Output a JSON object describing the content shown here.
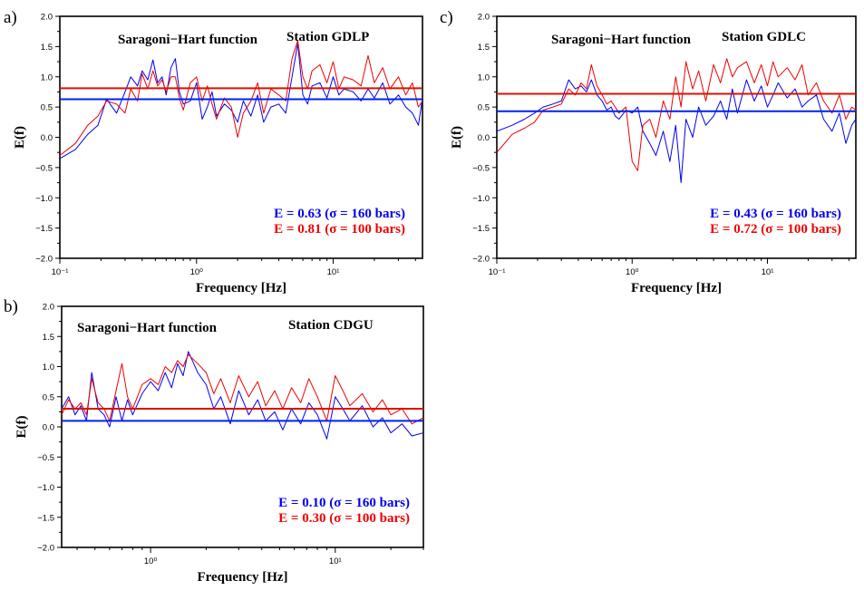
{
  "chart_data": [
    {
      "panel": "a)",
      "type": "line",
      "x_scale": "log",
      "xlim": [
        0.1,
        45
      ],
      "ylim": [
        -2.0,
        2.0
      ],
      "xlabel": "Frequency [Hz]",
      "ylabel": "E(f)",
      "title_left": "Saragoni−Hart function",
      "title_right": "Station GDLP",
      "x_tick_labels": [
        "10⁻¹",
        "10⁰",
        "10¹"
      ],
      "y_tick_labels": [
        "2.0",
        "1.5",
        "1.0",
        "0.5",
        "0.0",
        "−0.5",
        "−1.0",
        "−1.5",
        "−2.0"
      ],
      "legend": [
        "E = 0.63 (σ = 160 bars)",
        "E = 0.81 (σ = 100 bars)"
      ],
      "series": [
        {
          "label": "σ = 160 bars",
          "color": "#0000ee",
          "mean": 0.63,
          "x": [
            0.1,
            0.13,
            0.16,
            0.19,
            0.22,
            0.26,
            0.3,
            0.33,
            0.37,
            0.4,
            0.44,
            0.48,
            0.52,
            0.56,
            0.6,
            0.65,
            0.7,
            0.75,
            0.8,
            0.9,
            1.0,
            1.1,
            1.2,
            1.3,
            1.4,
            1.6,
            1.8,
            2.0,
            2.2,
            2.5,
            2.8,
            3.1,
            3.5,
            4.0,
            4.5,
            5.0,
            5.5,
            6.0,
            6.5,
            7.0,
            8.0,
            9.0,
            10,
            11,
            12,
            14,
            16,
            18,
            20,
            23,
            26,
            30,
            34,
            38,
            42,
            45
          ],
          "y": [
            -0.35,
            -0.2,
            0.05,
            0.2,
            0.63,
            0.4,
            0.75,
            1.0,
            0.85,
            1.1,
            0.95,
            1.28,
            0.9,
            1.0,
            0.7,
            1.15,
            1.3,
            0.75,
            0.55,
            0.6,
            0.9,
            0.3,
            0.5,
            0.75,
            0.35,
            0.55,
            0.45,
            0.25,
            0.6,
            0.35,
            0.7,
            0.25,
            0.5,
            0.55,
            0.4,
            1.0,
            1.55,
            0.7,
            0.55,
            0.85,
            0.9,
            0.65,
            1.0,
            0.7,
            0.8,
            0.75,
            0.6,
            0.8,
            0.65,
            0.9,
            0.55,
            0.7,
            0.5,
            0.4,
            0.2,
            0.65
          ]
        },
        {
          "label": "σ = 100 bars",
          "color": "#ee0000",
          "mean": 0.81,
          "x": [
            0.1,
            0.13,
            0.16,
            0.19,
            0.22,
            0.26,
            0.3,
            0.33,
            0.37,
            0.4,
            0.44,
            0.48,
            0.52,
            0.56,
            0.6,
            0.65,
            0.7,
            0.75,
            0.8,
            0.9,
            1.0,
            1.1,
            1.2,
            1.3,
            1.4,
            1.6,
            1.8,
            2.0,
            2.2,
            2.5,
            2.8,
            3.1,
            3.5,
            4.0,
            4.5,
            5.0,
            5.5,
            6.0,
            6.5,
            7.0,
            8.0,
            9.0,
            10,
            11,
            12,
            14,
            16,
            18,
            20,
            23,
            26,
            30,
            34,
            38,
            42,
            45
          ],
          "y": [
            -0.3,
            -0.1,
            0.2,
            0.35,
            0.6,
            0.55,
            0.4,
            0.8,
            0.6,
            1.05,
            0.8,
            1.1,
            0.85,
            0.95,
            0.75,
            1.0,
            1.0,
            0.65,
            0.45,
            0.9,
            1.0,
            0.6,
            0.85,
            0.55,
            0.3,
            0.65,
            0.5,
            0.0,
            0.4,
            0.6,
            0.9,
            0.4,
            0.8,
            0.7,
            0.6,
            1.3,
            1.6,
            1.0,
            0.8,
            1.1,
            1.2,
            0.9,
            1.25,
            0.8,
            1.0,
            0.95,
            0.85,
            1.35,
            0.9,
            1.15,
            0.8,
            1.0,
            0.7,
            0.9,
            0.5,
            0.6
          ]
        }
      ]
    },
    {
      "panel": "b)",
      "type": "line",
      "x_scale": "log",
      "xlim": [
        0.33,
        30
      ],
      "ylim": [
        -2.0,
        2.0
      ],
      "xlabel": "Frequency [Hz]",
      "ylabel": "E(f)",
      "title_left": "Saragoni−Hart function",
      "title_right": "Station CDGU",
      "x_tick_labels": [
        "10⁰",
        "10¹"
      ],
      "y_tick_labels": [
        "2.0",
        "1.5",
        "1.0",
        "0.5",
        "0.0",
        "−0.5",
        "−1.0",
        "−1.5",
        "−2.0"
      ],
      "legend": [
        "E = 0.10 (σ = 160 bars)",
        "E = 0.30 (σ = 100 bars)"
      ],
      "series": [
        {
          "label": "σ = 160 bars",
          "color": "#0000ee",
          "mean": 0.1,
          "x": [
            0.33,
            0.36,
            0.39,
            0.42,
            0.45,
            0.48,
            0.52,
            0.56,
            0.6,
            0.65,
            0.7,
            0.75,
            0.8,
            0.9,
            1.0,
            1.1,
            1.2,
            1.3,
            1.4,
            1.5,
            1.6,
            1.8,
            2.0,
            2.2,
            2.4,
            2.7,
            3.0,
            3.4,
            3.8,
            4.2,
            4.7,
            5.2,
            5.8,
            6.5,
            7.2,
            8.0,
            9.0,
            10,
            11,
            12,
            14,
            16,
            18,
            20,
            23,
            26,
            30
          ],
          "y": [
            0.3,
            0.5,
            0.2,
            0.35,
            0.1,
            0.9,
            0.3,
            0.2,
            0.0,
            0.5,
            0.1,
            0.45,
            0.2,
            0.55,
            0.75,
            0.6,
            0.9,
            0.65,
            1.05,
            0.85,
            1.25,
            0.9,
            0.7,
            0.3,
            0.5,
            0.05,
            0.6,
            0.2,
            0.45,
            0.1,
            0.25,
            -0.05,
            0.3,
            0.05,
            0.4,
            0.2,
            -0.2,
            0.5,
            0.3,
            0.1,
            0.35,
            0.0,
            0.15,
            -0.1,
            0.05,
            -0.15,
            -0.1
          ]
        },
        {
          "label": "σ = 100 bars",
          "color": "#ee0000",
          "mean": 0.3,
          "x": [
            0.33,
            0.36,
            0.39,
            0.42,
            0.45,
            0.48,
            0.52,
            0.56,
            0.6,
            0.65,
            0.7,
            0.75,
            0.8,
            0.9,
            1.0,
            1.1,
            1.2,
            1.3,
            1.4,
            1.5,
            1.6,
            1.8,
            2.0,
            2.2,
            2.4,
            2.7,
            3.0,
            3.4,
            3.8,
            4.2,
            4.7,
            5.2,
            5.8,
            6.5,
            7.2,
            8.0,
            9.0,
            10,
            11,
            12,
            14,
            16,
            18,
            20,
            23,
            26,
            30
          ],
          "y": [
            0.2,
            0.45,
            0.3,
            0.4,
            0.2,
            0.8,
            0.4,
            0.3,
            0.1,
            0.6,
            1.05,
            0.5,
            0.3,
            0.7,
            0.8,
            0.7,
            1.0,
            0.9,
            1.1,
            1.0,
            1.2,
            1.05,
            0.9,
            0.55,
            0.8,
            0.4,
            0.85,
            0.5,
            0.75,
            0.35,
            0.6,
            0.3,
            0.65,
            0.4,
            0.8,
            0.5,
            0.1,
            0.85,
            0.6,
            0.35,
            0.55,
            0.25,
            0.45,
            0.2,
            0.3,
            0.05,
            0.15
          ]
        }
      ]
    },
    {
      "panel": "c)",
      "type": "line",
      "x_scale": "log",
      "xlim": [
        0.1,
        45
      ],
      "ylim": [
        -2.0,
        2.0
      ],
      "xlabel": "Frequency [Hz]",
      "ylabel": "E(f)",
      "title_left": "Saragoni−Hart function",
      "title_right": "Station GDLC",
      "x_tick_labels": [
        "10⁻¹",
        "10⁰",
        "10¹"
      ],
      "y_tick_labels": [
        "2.0",
        "1.5",
        "1.0",
        "0.5",
        "0.0",
        "−0.5",
        "−1.0",
        "−1.5",
        "−2.0"
      ],
      "legend": [
        "E = 0.43 (σ = 160 bars)",
        "E = 0.72 (σ = 100 bars)"
      ],
      "series": [
        {
          "label": "σ = 160 bars",
          "color": "#0000ee",
          "mean": 0.43,
          "x": [
            0.1,
            0.13,
            0.16,
            0.19,
            0.22,
            0.26,
            0.3,
            0.34,
            0.38,
            0.42,
            0.46,
            0.5,
            0.55,
            0.6,
            0.65,
            0.7,
            0.75,
            0.8,
            0.9,
            1.0,
            1.1,
            1.2,
            1.35,
            1.5,
            1.7,
            1.9,
            2.1,
            2.3,
            2.5,
            2.8,
            3.1,
            3.5,
            4.0,
            4.5,
            5.0,
            5.5,
            6.0,
            7.0,
            8.0,
            9.0,
            10,
            11,
            12,
            14,
            16,
            18,
            20,
            23,
            26,
            30,
            34,
            38,
            42,
            45
          ],
          "y": [
            0.1,
            0.2,
            0.3,
            0.4,
            0.5,
            0.55,
            0.6,
            0.95,
            0.8,
            0.85,
            0.75,
            0.95,
            0.7,
            0.6,
            0.45,
            0.5,
            0.35,
            0.3,
            0.45,
            0.4,
            0.5,
            0.1,
            -0.1,
            -0.3,
            0.1,
            -0.4,
            0.2,
            -0.75,
            0.3,
            0.0,
            0.5,
            0.2,
            0.35,
            0.6,
            0.3,
            0.8,
            0.4,
            0.95,
            0.6,
            0.85,
            0.5,
            0.7,
            0.9,
            0.65,
            0.8,
            0.5,
            0.6,
            0.7,
            0.3,
            0.1,
            0.4,
            -0.1,
            0.2,
            0.3
          ]
        },
        {
          "label": "σ = 100 bars",
          "color": "#ee0000",
          "mean": 0.72,
          "x": [
            0.1,
            0.13,
            0.16,
            0.19,
            0.22,
            0.26,
            0.3,
            0.34,
            0.38,
            0.42,
            0.46,
            0.5,
            0.55,
            0.6,
            0.65,
            0.7,
            0.75,
            0.8,
            0.9,
            1.0,
            1.1,
            1.2,
            1.35,
            1.5,
            1.7,
            1.9,
            2.1,
            2.3,
            2.5,
            2.8,
            3.1,
            3.5,
            4.0,
            4.5,
            5.0,
            5.5,
            6.0,
            7.0,
            8.0,
            9.0,
            10,
            11,
            12,
            14,
            16,
            18,
            20,
            23,
            26,
            30,
            34,
            38,
            42,
            45
          ],
          "y": [
            -0.25,
            0.05,
            0.15,
            0.25,
            0.45,
            0.5,
            0.55,
            0.8,
            0.7,
            0.9,
            0.8,
            1.2,
            0.85,
            0.7,
            0.55,
            0.6,
            0.5,
            0.4,
            0.5,
            -0.4,
            -0.55,
            0.2,
            0.3,
            0.0,
            0.6,
            0.3,
            1.0,
            0.5,
            1.25,
            0.8,
            1.1,
            0.6,
            1.2,
            0.9,
            1.3,
            1.0,
            1.15,
            1.25,
            0.9,
            1.2,
            0.85,
            1.25,
            1.0,
            1.15,
            0.95,
            1.2,
            0.7,
            0.9,
            0.6,
            0.4,
            0.7,
            0.3,
            0.5,
            0.45
          ]
        }
      ]
    }
  ],
  "styles": {
    "blue": "#0000ee",
    "red": "#ee0000",
    "mean_blue": "#0022ee",
    "mean_red": "#dd1100"
  }
}
